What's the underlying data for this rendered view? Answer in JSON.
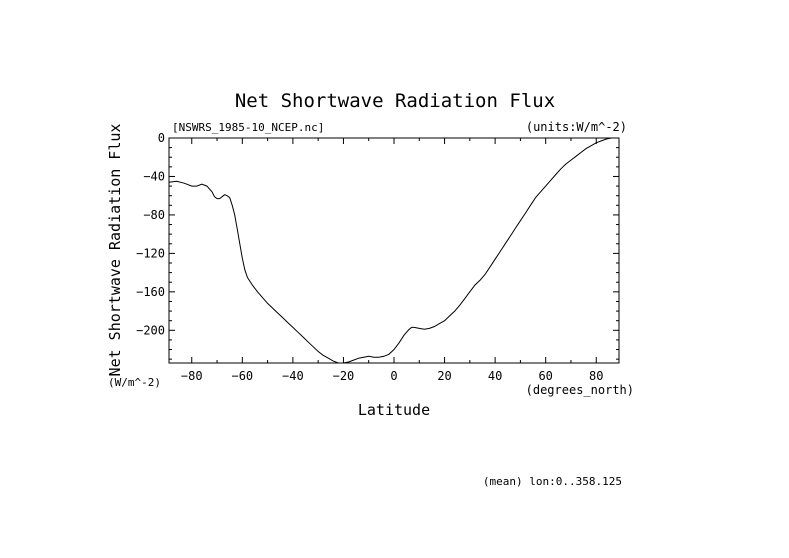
{
  "chart_data": {
    "type": "line",
    "title": "Net Shortwave Radiation Flux",
    "file_label": "[NSWRS_1985-10_NCEP.nc]",
    "units_label": "(units:W/m^-2)",
    "ylabel": "Net Shortwave Radiation Flux",
    "y_units": "(W/m^-2)",
    "xlabel": "Latitude",
    "x_units": "(degrees_north)",
    "footnote": "(mean) lon:0..358.125",
    "xlim": [
      -89,
      89
    ],
    "ylim": [
      -234,
      0
    ],
    "x_ticks": [
      -80,
      -60,
      -40,
      -20,
      0,
      20,
      40,
      60,
      80
    ],
    "y_ticks": [
      0,
      -40,
      -80,
      -120,
      -160,
      -200
    ],
    "grid": false,
    "series": [
      {
        "color": "#000000",
        "x": [
          -89,
          -86,
          -83,
          -80,
          -78,
          -76,
          -74,
          -72,
          -71,
          -70,
          -69,
          -68,
          -67,
          -66,
          -65,
          -64,
          -63,
          -62,
          -61,
          -60,
          -59,
          -58,
          -56,
          -54,
          -52,
          -50,
          -48,
          -46,
          -44,
          -42,
          -40,
          -38,
          -36,
          -34,
          -32,
          -30,
          -28,
          -26,
          -24,
          -22,
          -20,
          -18,
          -16,
          -14,
          -12,
          -10,
          -8,
          -6,
          -4,
          -2,
          0,
          2,
          4,
          6,
          7,
          8,
          10,
          12,
          14,
          16,
          18,
          20,
          22,
          24,
          26,
          28,
          30,
          32,
          34,
          36,
          38,
          40,
          42,
          44,
          46,
          48,
          50,
          52,
          54,
          56,
          58,
          60,
          62,
          64,
          66,
          68,
          70,
          72,
          74,
          76,
          78,
          80,
          82,
          84,
          86,
          88
        ],
        "values": [
          -46,
          -45,
          -47,
          -50,
          -50,
          -48,
          -50,
          -56,
          -61,
          -63,
          -63,
          -61,
          -59,
          -60,
          -62,
          -70,
          -80,
          -95,
          -110,
          -125,
          -137,
          -145,
          -153,
          -160,
          -166,
          -172,
          -177,
          -182,
          -187,
          -192,
          -197,
          -202,
          -207,
          -212,
          -217,
          -222,
          -226,
          -229,
          -232,
          -234,
          -235,
          -233,
          -231,
          -229,
          -228,
          -227,
          -228,
          -228,
          -227,
          -225,
          -220,
          -213,
          -205,
          -199,
          -197,
          -197,
          -198,
          -199,
          -198,
          -196,
          -193,
          -190,
          -185,
          -180,
          -174,
          -167,
          -160,
          -153,
          -148,
          -142,
          -134,
          -126,
          -118,
          -110,
          -102,
          -94,
          -86,
          -78,
          -70,
          -62,
          -56,
          -50,
          -44,
          -38,
          -32,
          -27,
          -23,
          -19,
          -15,
          -11,
          -8,
          -5,
          -3,
          -1,
          0,
          0
        ]
      }
    ]
  }
}
